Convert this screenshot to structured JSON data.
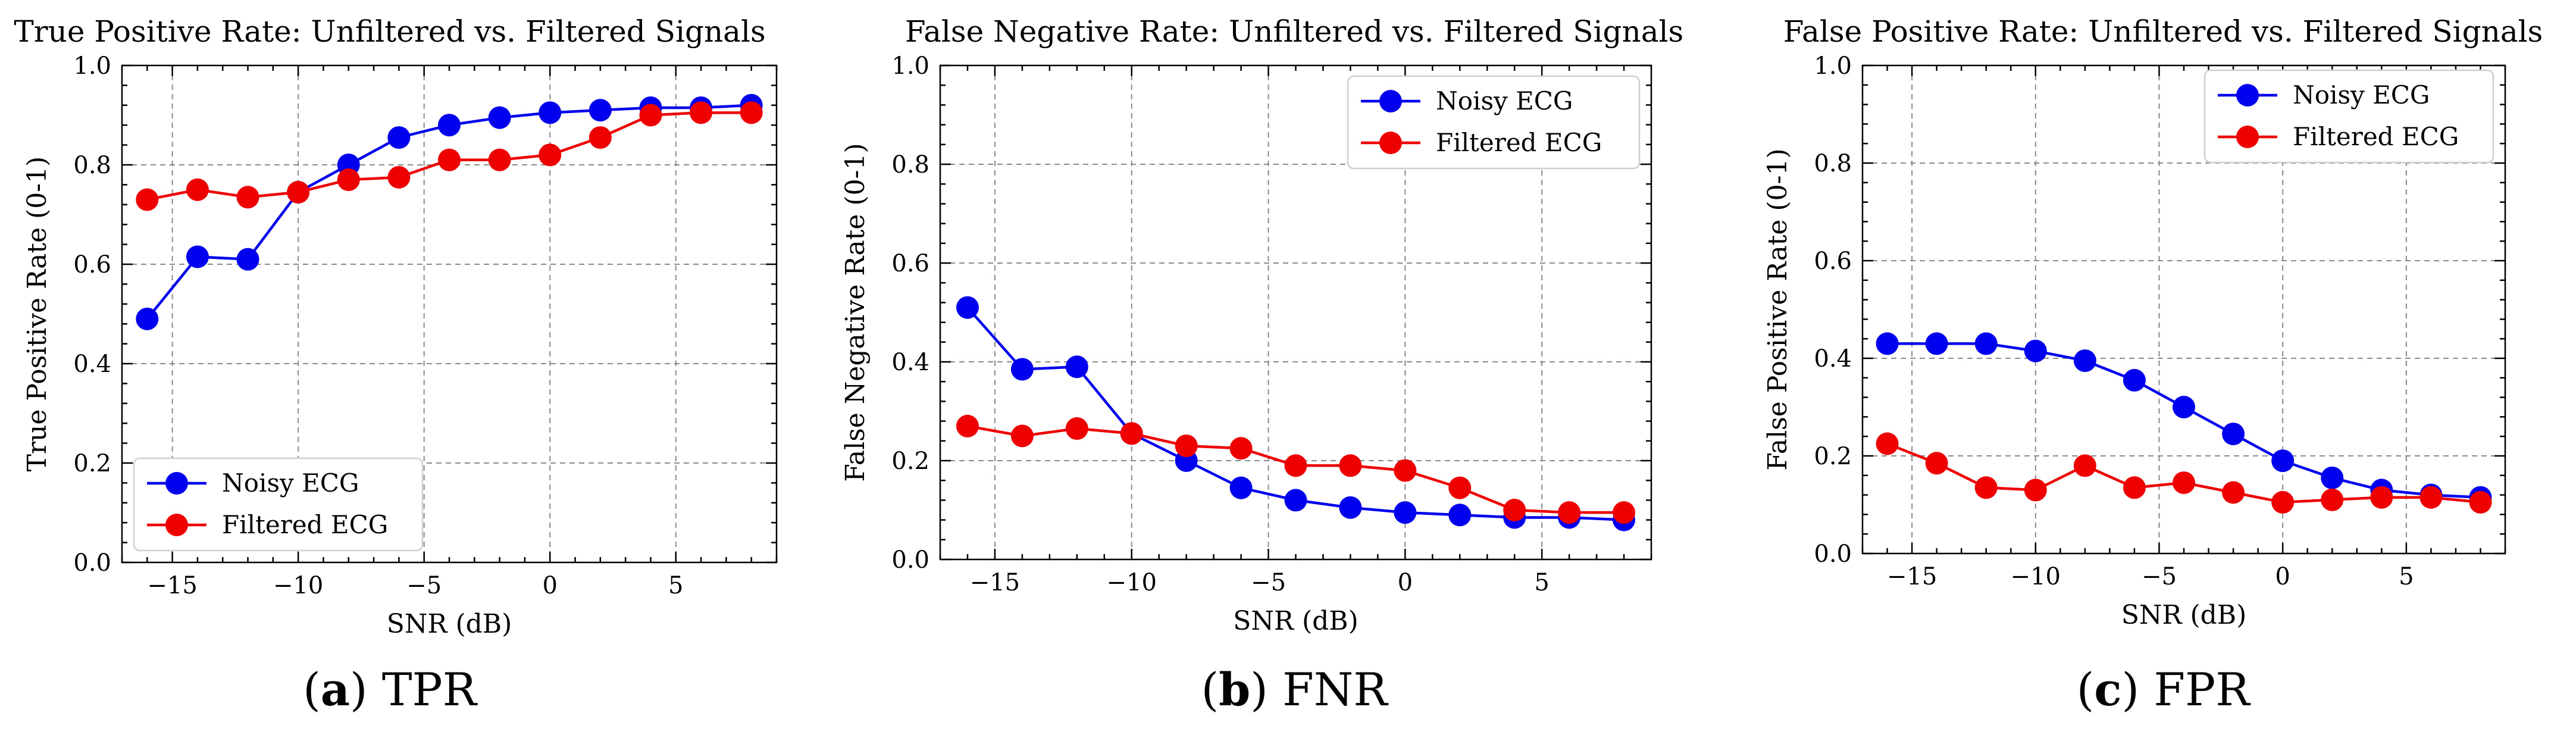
{
  "chart_data": [
    {
      "type": "line",
      "caption_letter": "a",
      "caption_text": "TPR",
      "title": "True Positive Rate: Unfiltered vs. Filtered Signals",
      "xlabel": "SNR (dB)",
      "ylabel": "True Positive Rate (0-1)",
      "xlim": [
        -17,
        9
      ],
      "ylim": [
        0.0,
        1.0
      ],
      "xticks": [
        -15,
        -10,
        -5,
        0,
        5
      ],
      "yticks": [
        0.0,
        0.2,
        0.4,
        0.6,
        0.8,
        1.0
      ],
      "xtick_labels": [
        "−15",
        "−10",
        "−5",
        "0",
        "5"
      ],
      "ytick_labels": [
        "0.0",
        "0.2",
        "0.4",
        "0.6",
        "0.8",
        "1.0"
      ],
      "grid": true,
      "legend_position": "lower-left",
      "x": [
        -16,
        -14,
        -12,
        -10,
        -8,
        -6,
        -4,
        -2,
        0,
        2,
        4,
        6,
        8
      ],
      "series": [
        {
          "name": "Noisy ECG",
          "color": "#0000ee",
          "values": [
            0.49,
            0.615,
            0.61,
            0.745,
            0.8,
            0.855,
            0.88,
            0.895,
            0.905,
            0.91,
            0.915,
            0.915,
            0.92
          ]
        },
        {
          "name": "Filtered ECG",
          "color": "#ee0000",
          "values": [
            0.73,
            0.75,
            0.735,
            0.745,
            0.77,
            0.775,
            0.81,
            0.81,
            0.82,
            0.855,
            0.9,
            0.905,
            0.905
          ]
        }
      ]
    },
    {
      "type": "line",
      "caption_letter": "b",
      "caption_text": "FNR",
      "title": "False Negative Rate: Unfiltered vs. Filtered Signals",
      "xlabel": "SNR (dB)",
      "ylabel": "False Negative Rate (0-1)",
      "xlim": [
        -17,
        9
      ],
      "ylim": [
        0.0,
        1.0
      ],
      "xticks": [
        -15,
        -10,
        -5,
        0,
        5
      ],
      "yticks": [
        0.0,
        0.2,
        0.4,
        0.6,
        0.8,
        1.0
      ],
      "xtick_labels": [
        "−15",
        "−10",
        "−5",
        "0",
        "5"
      ],
      "ytick_labels": [
        "0.0",
        "0.2",
        "0.4",
        "0.6",
        "0.8",
        "1.0"
      ],
      "grid": true,
      "legend_position": "upper-right",
      "x": [
        -16,
        -14,
        -12,
        -10,
        -8,
        -6,
        -4,
        -2,
        0,
        2,
        4,
        6,
        8
      ],
      "series": [
        {
          "name": "Noisy ECG",
          "color": "#0000ee",
          "values": [
            0.51,
            0.385,
            0.39,
            0.255,
            0.2,
            0.145,
            0.12,
            0.105,
            0.095,
            0.09,
            0.085,
            0.085,
            0.08
          ]
        },
        {
          "name": "Filtered ECG",
          "color": "#ee0000",
          "values": [
            0.27,
            0.25,
            0.265,
            0.255,
            0.23,
            0.225,
            0.19,
            0.19,
            0.18,
            0.145,
            0.1,
            0.095,
            0.095
          ]
        }
      ]
    },
    {
      "type": "line",
      "caption_letter": "c",
      "caption_text": "FPR",
      "title": "False Positive Rate: Unfiltered vs. Filtered Signals",
      "xlabel": "SNR (dB)",
      "ylabel": "False Positive Rate (0-1)",
      "xlim": [
        -17,
        9
      ],
      "ylim": [
        0.0,
        1.0
      ],
      "xticks": [
        -15,
        -10,
        -5,
        0,
        5
      ],
      "yticks": [
        0.0,
        0.2,
        0.4,
        0.6,
        0.8,
        1.0
      ],
      "xtick_labels": [
        "−15",
        "−10",
        "−5",
        "0",
        "5"
      ],
      "ytick_labels": [
        "0.0",
        "0.2",
        "0.4",
        "0.6",
        "0.8",
        "1.0"
      ],
      "grid": true,
      "legend_position": "upper-right",
      "x": [
        -16,
        -14,
        -12,
        -10,
        -8,
        -6,
        -4,
        -2,
        0,
        2,
        4,
        6,
        8
      ],
      "series": [
        {
          "name": "Noisy ECG",
          "color": "#0000ee",
          "values": [
            0.43,
            0.43,
            0.43,
            0.415,
            0.395,
            0.355,
            0.3,
            0.245,
            0.19,
            0.155,
            0.13,
            0.12,
            0.115
          ]
        },
        {
          "name": "Filtered ECG",
          "color": "#ee0000",
          "values": [
            0.225,
            0.185,
            0.135,
            0.13,
            0.18,
            0.135,
            0.145,
            0.125,
            0.105,
            0.11,
            0.115,
            0.115,
            0.105
          ]
        }
      ]
    }
  ]
}
